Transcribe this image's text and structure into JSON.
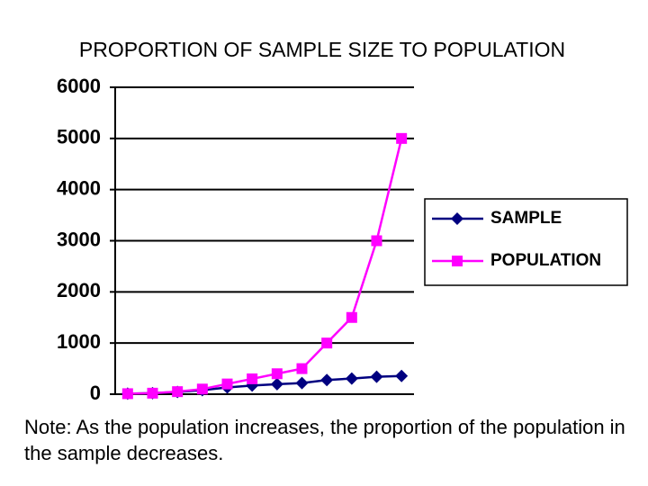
{
  "chart_data": {
    "type": "line",
    "title": "PROPORTION OF SAMPLE SIZE TO POPULATION",
    "note": "Note: As the population increases, the proportion of the population in the sample decreases.",
    "categories": [
      null,
      null,
      null,
      null,
      null,
      null,
      null,
      null,
      null,
      null,
      null,
      null
    ],
    "series": [
      {
        "name": "SAMPLE",
        "color": "#000080",
        "marker": "diamond",
        "values": [
          10,
          19,
          44,
          80,
          132,
          169,
          196,
          217,
          278,
          306,
          341,
          357
        ]
      },
      {
        "name": "POPULATION",
        "color": "#ff00ff",
        "marker": "square",
        "values": [
          10,
          20,
          50,
          100,
          200,
          300,
          400,
          500,
          1000,
          1500,
          3000,
          5000
        ]
      }
    ],
    "ylim": [
      0,
      6000
    ],
    "yticks": [
      0,
      1000,
      2000,
      3000,
      4000,
      5000,
      6000
    ],
    "grid": true,
    "legend": "right"
  }
}
